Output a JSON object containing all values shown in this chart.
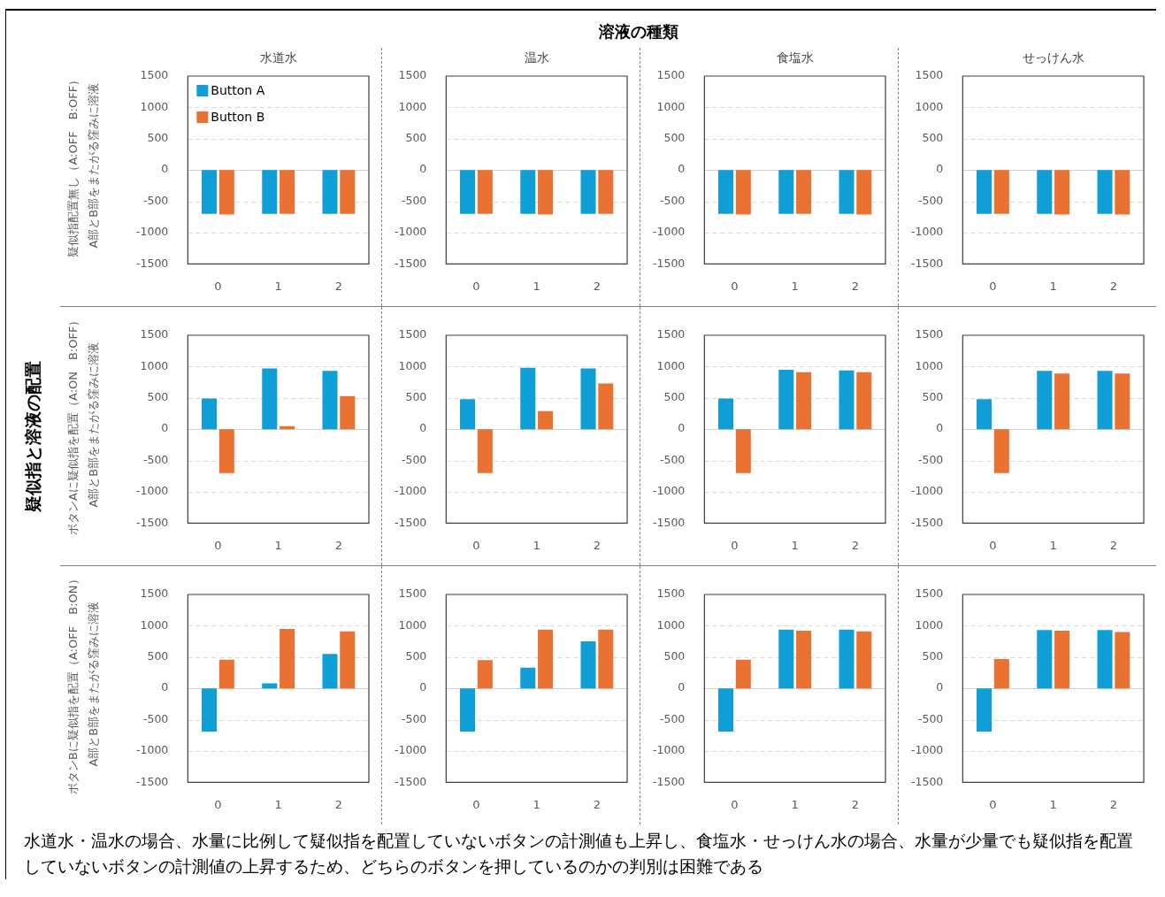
{
  "chart_data": [
    {
      "type": "bar",
      "title": "水道水",
      "ylabel": "疑似指配置無し（A:OFF　B:OFF）\nA部とB部をまたがる窪みに溶液",
      "categories": [
        "0",
        "1",
        "2"
      ],
      "ylim": [
        -1500,
        1500
      ],
      "yticks": [
        -1500,
        -1000,
        -500,
        0,
        500,
        1000,
        1500
      ],
      "grid": "y",
      "legend": "top left",
      "series": [
        {
          "name": "Button A",
          "color": "#0f9ed5",
          "values": [
            -700,
            -700,
            -700
          ]
        },
        {
          "name": "Button B",
          "color": "#e97132",
          "values": [
            -710,
            -700,
            -700
          ]
        }
      ]
    },
    {
      "type": "bar",
      "title": "温水",
      "categories": [
        "0",
        "1",
        "2"
      ],
      "ylim": [
        -1500,
        1500
      ],
      "yticks": [
        -1500,
        -1000,
        -500,
        0,
        500,
        1000,
        1500
      ],
      "grid": "y",
      "series": [
        {
          "color": "#0f9ed5",
          "values": [
            -700,
            -700,
            -700
          ]
        },
        {
          "color": "#e97132",
          "values": [
            -700,
            -710,
            -700
          ]
        }
      ]
    },
    {
      "type": "bar",
      "title": "食塩水",
      "categories": [
        "0",
        "1",
        "2"
      ],
      "ylim": [
        -1500,
        1500
      ],
      "yticks": [
        -1500,
        -1000,
        -500,
        0,
        500,
        1000,
        1500
      ],
      "grid": "y",
      "series": [
        {
          "color": "#0f9ed5",
          "values": [
            -700,
            -700,
            -700
          ]
        },
        {
          "color": "#e97132",
          "values": [
            -710,
            -700,
            -710
          ]
        }
      ]
    },
    {
      "type": "bar",
      "title": "せっけん水",
      "categories": [
        "0",
        "1",
        "2"
      ],
      "ylim": [
        -1500,
        1500
      ],
      "yticks": [
        -1500,
        -1000,
        -500,
        0,
        500,
        1000,
        1500
      ],
      "grid": "y",
      "series": [
        {
          "color": "#0f9ed5",
          "values": [
            -700,
            -700,
            -700
          ]
        },
        {
          "color": "#e97132",
          "values": [
            -700,
            -710,
            -710
          ]
        }
      ]
    },
    {
      "type": "bar",
      "ylabel": "ボタンAに疑似指を配置（A:ON　B:OFF）\nA部とB部をまたがる窪みに溶液",
      "categories": [
        "0",
        "1",
        "2"
      ],
      "ylim": [
        -1500,
        1500
      ],
      "yticks": [
        -1500,
        -1000,
        -500,
        0,
        500,
        1000,
        1500
      ],
      "grid": "y",
      "series": [
        {
          "color": "#0f9ed5",
          "values": [
            490,
            970,
            930
          ]
        },
        {
          "color": "#e97132",
          "values": [
            -700,
            50,
            530
          ]
        }
      ]
    },
    {
      "type": "bar",
      "categories": [
        "0",
        "1",
        "2"
      ],
      "ylim": [
        -1500,
        1500
      ],
      "yticks": [
        -1500,
        -1000,
        -500,
        0,
        500,
        1000,
        1500
      ],
      "grid": "y",
      "series": [
        {
          "color": "#0f9ed5",
          "values": [
            480,
            980,
            970
          ]
        },
        {
          "color": "#e97132",
          "values": [
            -700,
            290,
            730
          ]
        }
      ]
    },
    {
      "type": "bar",
      "categories": [
        "0",
        "1",
        "2"
      ],
      "ylim": [
        -1500,
        1500
      ],
      "yticks": [
        -1500,
        -1000,
        -500,
        0,
        500,
        1000,
        1500
      ],
      "grid": "y",
      "series": [
        {
          "color": "#0f9ed5",
          "values": [
            490,
            950,
            940
          ]
        },
        {
          "color": "#e97132",
          "values": [
            -700,
            910,
            910
          ]
        }
      ]
    },
    {
      "type": "bar",
      "categories": [
        "0",
        "1",
        "2"
      ],
      "ylim": [
        -1500,
        1500
      ],
      "yticks": [
        -1500,
        -1000,
        -500,
        0,
        500,
        1000,
        1500
      ],
      "grid": "y",
      "series": [
        {
          "color": "#0f9ed5",
          "values": [
            480,
            930,
            930
          ]
        },
        {
          "color": "#e97132",
          "values": [
            -700,
            890,
            890
          ]
        }
      ]
    },
    {
      "type": "bar",
      "ylabel": "ボタンBに疑似指を配置（A:OFF　B:ON）\nA部とB部をまたがる窪みに溶液",
      "categories": [
        "0",
        "1",
        "2"
      ],
      "ylim": [
        -1500,
        1500
      ],
      "yticks": [
        -1500,
        -1000,
        -500,
        0,
        500,
        1000,
        1500
      ],
      "grid": "y",
      "series": [
        {
          "color": "#0f9ed5",
          "values": [
            -690,
            80,
            550
          ]
        },
        {
          "color": "#e97132",
          "values": [
            460,
            950,
            910
          ]
        }
      ]
    },
    {
      "type": "bar",
      "categories": [
        "0",
        "1",
        "2"
      ],
      "ylim": [
        -1500,
        1500
      ],
      "yticks": [
        -1500,
        -1000,
        -500,
        0,
        500,
        1000,
        1500
      ],
      "grid": "y",
      "series": [
        {
          "color": "#0f9ed5",
          "values": [
            -690,
            330,
            750
          ]
        },
        {
          "color": "#e97132",
          "values": [
            450,
            940,
            940
          ]
        }
      ]
    },
    {
      "type": "bar",
      "categories": [
        "0",
        "1",
        "2"
      ],
      "ylim": [
        -1500,
        1500
      ],
      "yticks": [
        -1500,
        -1000,
        -500,
        0,
        500,
        1000,
        1500
      ],
      "grid": "y",
      "series": [
        {
          "color": "#0f9ed5",
          "values": [
            -690,
            940,
            940
          ]
        },
        {
          "color": "#e97132",
          "values": [
            460,
            920,
            910
          ]
        }
      ]
    },
    {
      "type": "bar",
      "categories": [
        "0",
        "1",
        "2"
      ],
      "ylim": [
        -1500,
        1500
      ],
      "yticks": [
        -1500,
        -1000,
        -500,
        0,
        500,
        1000,
        1500
      ],
      "grid": "y",
      "series": [
        {
          "color": "#0f9ed5",
          "values": [
            -690,
            930,
            930
          ]
        },
        {
          "color": "#e97132",
          "values": [
            470,
            920,
            900
          ]
        }
      ]
    },
    {
      "type": "other",
      "title": "溶液の種類",
      "ylabel": "疑似指と溶液の配置",
      "annotations": [
        "水道水・温水の場合、水量に比例して疑似指を配置していないボタンの計測値も上昇し、食塩水・せっけん水の場合、水量が少量でも疑似指を配置していないボタンの計測値の上昇するため、どちらのボタンを押しているのかの判別は困難である"
      ]
    }
  ]
}
